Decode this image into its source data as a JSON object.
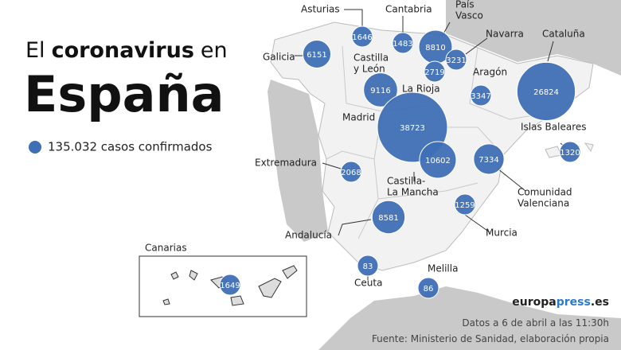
{
  "header": {
    "title": [
      "El",
      "coronavirus",
      "en"
    ],
    "subtitle": "España"
  },
  "legend": "135.032 casos confirmados",
  "regions": [
    {
      "name": [
        "Galicia"
      ],
      "value": 6151
    },
    {
      "name": [
        "Asturias"
      ],
      "value": 1646
    },
    {
      "name": [
        "Cantabria"
      ],
      "value": 1483
    },
    {
      "name": [
        "País",
        "Vasco"
      ],
      "value": 8810
    },
    {
      "name": [
        "Navarra"
      ],
      "value": 3231
    },
    {
      "name": [
        "La Rioja"
      ],
      "value": 2719
    },
    {
      "name": [
        "Castilla",
        "y León"
      ],
      "value": 9116
    },
    {
      "name": [
        "Aragón"
      ],
      "value": 3347
    },
    {
      "name": [
        "Cataluña"
      ],
      "value": 26824
    },
    {
      "name": [
        "Madrid"
      ],
      "value": 38723
    },
    {
      "name": [
        "Castilla-",
        "La Mancha"
      ],
      "value": 10602
    },
    {
      "name": [
        "Islas Baleares"
      ],
      "value": 1320
    },
    {
      "name": [
        "Comunidad",
        "Valenciana"
      ],
      "value": 7334
    },
    {
      "name": [
        "Extremadura"
      ],
      "value": 2068
    },
    {
      "name": [
        "Murcia"
      ],
      "value": 1259
    },
    {
      "name": [
        "Andalucía"
      ],
      "value": 8581
    },
    {
      "name": [
        "Ceuta"
      ],
      "value": 83
    },
    {
      "name": [
        "Melilla"
      ],
      "value": 86
    },
    {
      "name": [
        "Canarias"
      ],
      "value": 1649
    }
  ],
  "footer": {
    "logo": [
      "europa",
      "press",
      ".es"
    ],
    "date": "Datos a 6 de abril a las 11:30h",
    "source": "Fuente: Ministerio de Sanidad, elaboración propia"
  }
}
